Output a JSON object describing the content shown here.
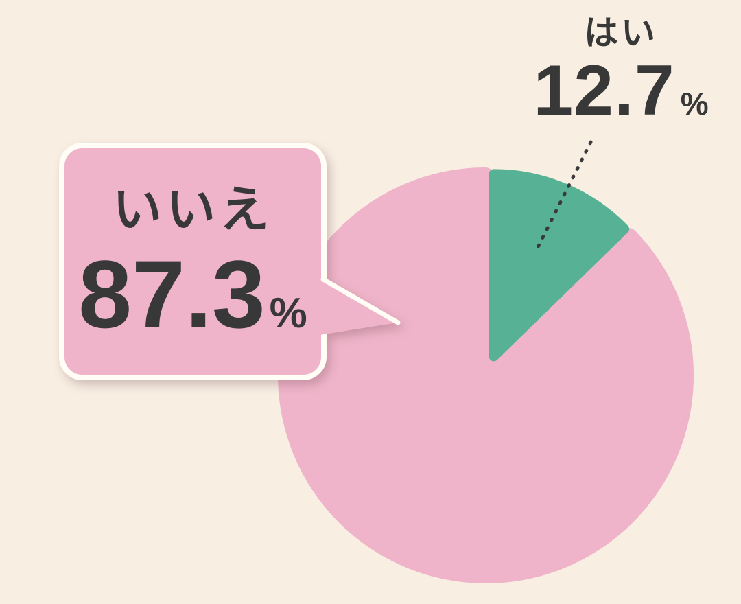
{
  "chart_data": {
    "type": "pie",
    "title": "",
    "categories": [
      "はい",
      "いいえ"
    ],
    "values": [
      12.7,
      87.3
    ],
    "unit": "%",
    "series_colors": [
      "#57b194",
      "#efb4c9"
    ],
    "start_angle_deg": 0,
    "direction": "clockwise",
    "legend_position": "none",
    "exploded_slice": "はい",
    "labels": {
      "yes": {
        "text": "はい",
        "value": "12.7",
        "unit": "%"
      },
      "no": {
        "text": "いいえ",
        "value": "87.3",
        "unit": "%"
      }
    }
  },
  "colors": {
    "background": "#f8eee2",
    "pie_yes": "#57b194",
    "pie_no": "#efb4c9",
    "bubble_fill": "#efb4c9",
    "bubble_border": "#fffdf6",
    "leader_line": "#3a3a3a",
    "text": "#383838"
  }
}
